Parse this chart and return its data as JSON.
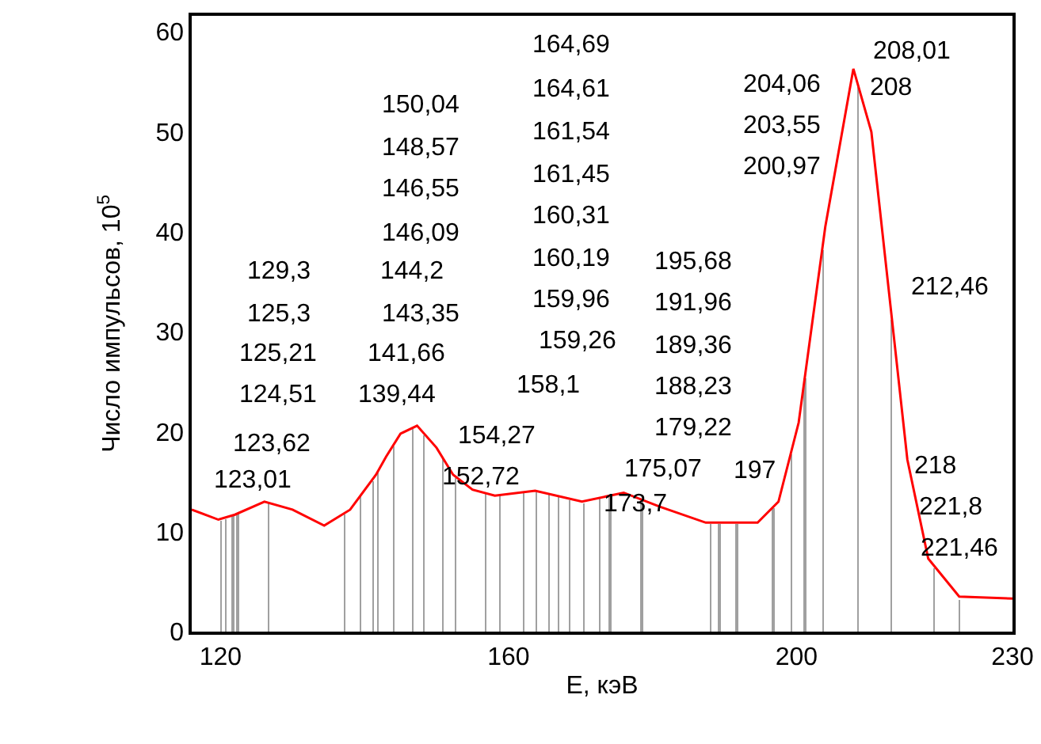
{
  "chart_data": {
    "type": "line",
    "xlabel": "E, кэВ",
    "ylabel": "Число импульсов, 10$^{5}$",
    "xlim": [
      116,
      230
    ],
    "xticks": [
      120,
      160,
      200,
      230
    ],
    "ylim": [
      0,
      61.6
    ],
    "yticks": [
      0,
      10,
      20,
      30,
      40,
      50,
      60
    ],
    "grid": false,
    "marker": "none",
    "line_style": "solid",
    "series": [
      {
        "type": "bar",
        "color": "#a0a0a0",
        "x": [
          120,
          120.75,
          121.7,
          122.4,
          126.6,
          137.2,
          139.5,
          141.2,
          141.9,
          144.1,
          146.7,
          148.2,
          150.9,
          152.6,
          156.9,
          158.8,
          162.1,
          163.9,
          165.7,
          167,
          168.5,
          170.5,
          172.7,
          174.1,
          178.5,
          188,
          189.3,
          191.7,
          196.8,
          199.3,
          201.2,
          203.7,
          208.5,
          213.2,
          219.1,
          222.6
        ],
        "values": [
          11.1,
          11.3,
          11.5,
          11.8,
          12.8,
          11.7,
          13.6,
          15.1,
          16,
          18.6,
          20.2,
          19.6,
          17.2,
          15.3,
          13.7,
          13.6,
          13.9,
          14,
          13.7,
          13.5,
          13.2,
          12.9,
          13.3,
          13.5,
          13.1,
          10.8,
          10.8,
          10.8,
          12.3,
          17.8,
          25.3,
          38.2,
          54.4,
          31.2,
          6.4,
          3.2
        ]
      },
      {
        "color": "#ff0000",
        "x": [
          116,
          119.7,
          122,
          126.1,
          130,
          134.4,
          138,
          141.6,
          143,
          145,
          147.3,
          150,
          152.3,
          155,
          158.1,
          163.7,
          170.2,
          176,
          181,
          187.4,
          194.6,
          197.5,
          200.3,
          204,
          207.9,
          210.4,
          212.9,
          215.4,
          218.3,
          222.6,
          230
        ],
        "values": [
          12.2,
          11.2,
          11.7,
          13,
          12.2,
          10.6,
          12.2,
          15.7,
          17.5,
          19.8,
          20.6,
          18.4,
          15.7,
          14.2,
          13.6,
          14.1,
          13,
          13.9,
          12.5,
          10.9,
          10.9,
          13,
          20.9,
          40.5,
          56.3,
          50,
          33.6,
          17.2,
          7.3,
          3.5,
          3.3
        ]
      }
    ],
    "annotations": [
      "129,3",
      "125,3",
      "125,21",
      "124,51",
      "123,62",
      "123,01",
      "150,04",
      "148,57",
      "146,55",
      "146,09",
      "144,2",
      "143,35",
      "141,66",
      "139,44",
      "154,27",
      "152,72",
      "164,69",
      "164,61",
      "161,54",
      "161,45",
      "160,31",
      "160,19",
      "159,96",
      "159,26",
      "158,1",
      "195,68",
      "191,96",
      "189,36",
      "188,23",
      "179,22",
      "175,07",
      "173,7",
      "197",
      "204,06",
      "203,55",
      "200,97",
      "208,01",
      "208",
      "212,46",
      "218",
      "221,8",
      "221,46"
    ]
  }
}
